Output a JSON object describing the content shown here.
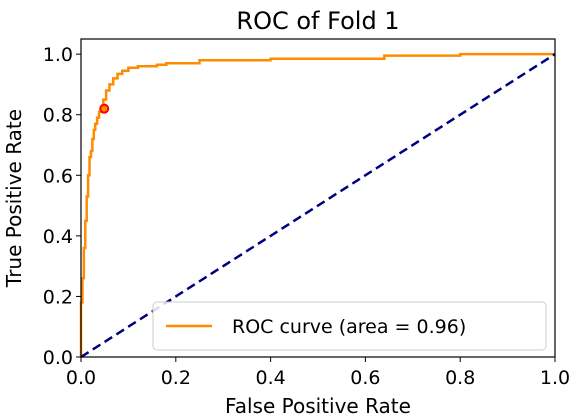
{
  "chart_data": {
    "type": "line",
    "title": "ROC of Fold 1",
    "xlabel": "False Positive Rate",
    "ylabel": "True Positive Rate",
    "xlim": [
      0.0,
      1.0
    ],
    "ylim": [
      0.0,
      1.05
    ],
    "xticks": [
      "0.0",
      "0.2",
      "0.4",
      "0.6",
      "0.8",
      "1.0"
    ],
    "yticks": [
      "0.0",
      "0.2",
      "0.4",
      "0.6",
      "0.8",
      "1.0"
    ],
    "grid": false,
    "legend_position": "lower-right",
    "series": [
      {
        "name": "ROC curve (area = 0.96)",
        "color": "#ff8c00",
        "style": "solid",
        "x": [
          0.0,
          0.0,
          0.003,
          0.003,
          0.006,
          0.006,
          0.009,
          0.009,
          0.012,
          0.012,
          0.015,
          0.015,
          0.018,
          0.018,
          0.021,
          0.021,
          0.024,
          0.024,
          0.027,
          0.027,
          0.03,
          0.03,
          0.034,
          0.034,
          0.038,
          0.038,
          0.042,
          0.042,
          0.047,
          0.047,
          0.053,
          0.053,
          0.06,
          0.06,
          0.068,
          0.068,
          0.077,
          0.077,
          0.087,
          0.087,
          0.1,
          0.1,
          0.12,
          0.12,
          0.16,
          0.16,
          0.18,
          0.18,
          0.25,
          0.25,
          0.4,
          0.4,
          0.64,
          0.64,
          0.8,
          0.8,
          1.0
        ],
        "y": [
          0.0,
          0.18,
          0.18,
          0.26,
          0.26,
          0.36,
          0.36,
          0.45,
          0.45,
          0.53,
          0.53,
          0.6,
          0.6,
          0.66,
          0.66,
          0.68,
          0.68,
          0.72,
          0.72,
          0.75,
          0.75,
          0.77,
          0.77,
          0.79,
          0.79,
          0.81,
          0.81,
          0.82,
          0.82,
          0.85,
          0.85,
          0.88,
          0.88,
          0.9,
          0.9,
          0.92,
          0.92,
          0.935,
          0.935,
          0.945,
          0.945,
          0.955,
          0.955,
          0.96,
          0.96,
          0.965,
          0.965,
          0.97,
          0.97,
          0.98,
          0.98,
          0.985,
          0.985,
          0.995,
          0.995,
          1.0,
          1.0
        ]
      },
      {
        "color": "#000080",
        "style": "dashed",
        "x": [
          0.0,
          1.0
        ],
        "y": [
          0.0,
          1.0
        ]
      }
    ],
    "markers": [
      {
        "x": 0.049,
        "y": 0.82,
        "color": "#ff0000",
        "fill": "#ff8c00"
      }
    ]
  }
}
